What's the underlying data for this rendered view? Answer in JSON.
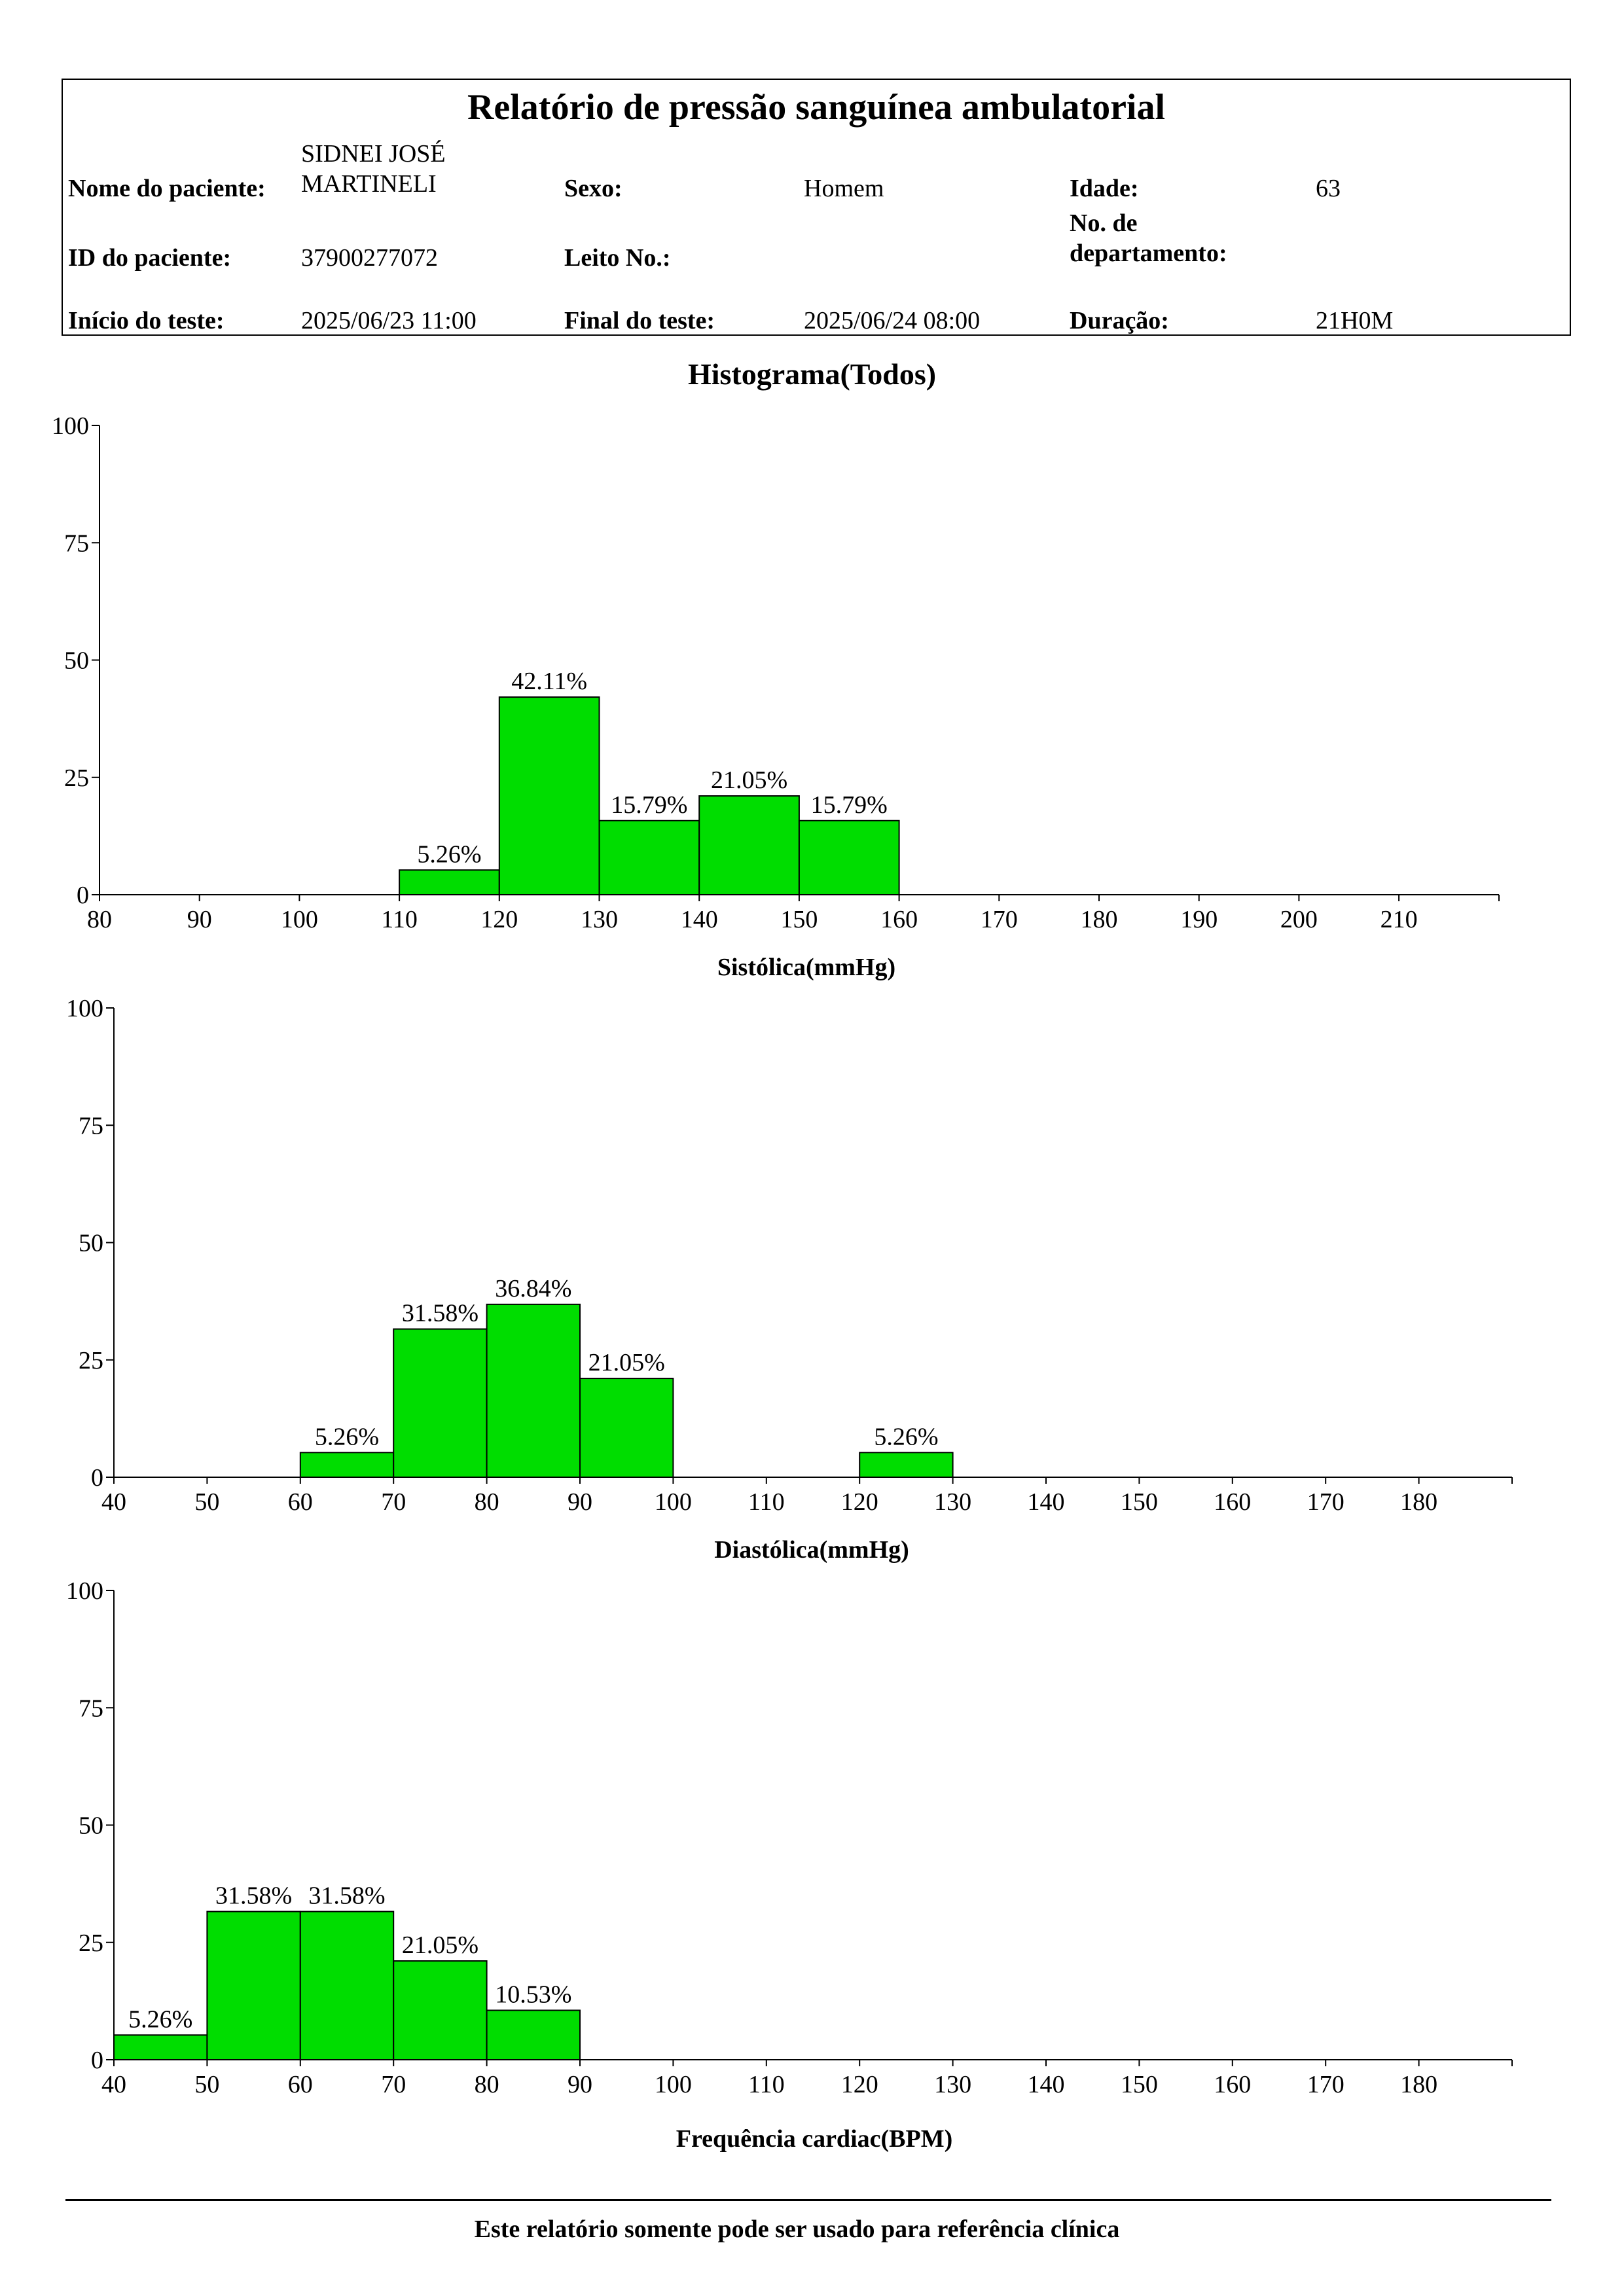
{
  "report": {
    "title": "Relatório de pressão sanguínea ambulatorial",
    "labels": {
      "patient_name": "Nome do paciente:",
      "sex": "Sexo:",
      "age": "Idade:",
      "patient_id": "ID do paciente:",
      "bed": "Leito No.:",
      "department_line1": "No. de",
      "department_line2": "departamento:",
      "test_start": "Início do teste:",
      "test_end": "Final do teste:",
      "duration": "Duração:"
    },
    "values": {
      "patient_name_line1": "SIDNEI JOSÉ",
      "patient_name_line2": "MARTINELI",
      "sex": "Homem",
      "age": "63",
      "patient_id": "37900277072",
      "bed": "",
      "department": "",
      "test_start": "2025/06/23 11:00",
      "test_end": "2025/06/24 08:00",
      "duration": "21H0M"
    }
  },
  "histogram_title": "Histograma(Todos)",
  "footer": "Este relatório somente pode ser usado para referência clínica",
  "colors": {
    "bar_fill": "#00dd00",
    "bar_stroke": "#000000",
    "axis": "#000000"
  },
  "chart_data": [
    {
      "type": "bar",
      "xlabel": "Sistólica(mmHg)",
      "ylabel": "",
      "xlim": [
        80,
        220
      ],
      "ylim": [
        0,
        100
      ],
      "x_ticks": [
        80,
        90,
        100,
        110,
        120,
        130,
        140,
        150,
        160,
        170,
        180,
        190,
        200,
        210
      ],
      "y_ticks": [
        0,
        25,
        50,
        75,
        100
      ],
      "bins": [
        {
          "from": 110,
          "to": 120,
          "value": 5.26,
          "label": "5.26%"
        },
        {
          "from": 120,
          "to": 130,
          "value": 42.11,
          "label": "42.11%"
        },
        {
          "from": 130,
          "to": 140,
          "value": 15.79,
          "label": "15.79%"
        },
        {
          "from": 140,
          "to": 150,
          "value": 21.05,
          "label": "21.05%"
        },
        {
          "from": 150,
          "to": 160,
          "value": 15.79,
          "label": "15.79%"
        }
      ]
    },
    {
      "type": "bar",
      "xlabel": "Diastólica(mmHg)",
      "ylabel": "",
      "xlim": [
        40,
        190
      ],
      "ylim": [
        0,
        100
      ],
      "x_ticks": [
        40,
        50,
        60,
        70,
        80,
        90,
        100,
        110,
        120,
        130,
        140,
        150,
        160,
        170,
        180
      ],
      "y_ticks": [
        0,
        25,
        50,
        75,
        100
      ],
      "bins": [
        {
          "from": 60,
          "to": 70,
          "value": 5.26,
          "label": "5.26%"
        },
        {
          "from": 70,
          "to": 80,
          "value": 31.58,
          "label": "31.58%"
        },
        {
          "from": 80,
          "to": 90,
          "value": 36.84,
          "label": "36.84%"
        },
        {
          "from": 90,
          "to": 100,
          "value": 21.05,
          "label": "21.05%"
        },
        {
          "from": 120,
          "to": 130,
          "value": 5.26,
          "label": "5.26%"
        }
      ]
    },
    {
      "type": "bar",
      "xlabel": "Frequência cardiac(BPM)",
      "ylabel": "",
      "xlim": [
        40,
        190
      ],
      "ylim": [
        0,
        100
      ],
      "x_ticks": [
        40,
        50,
        60,
        70,
        80,
        90,
        100,
        110,
        120,
        130,
        140,
        150,
        160,
        170,
        180
      ],
      "y_ticks": [
        0,
        25,
        50,
        75,
        100
      ],
      "bins": [
        {
          "from": 40,
          "to": 50,
          "value": 5.26,
          "label": "5.26%"
        },
        {
          "from": 50,
          "to": 60,
          "value": 31.58,
          "label": "31.58%"
        },
        {
          "from": 60,
          "to": 70,
          "value": 31.58,
          "label": "31.58%"
        },
        {
          "from": 70,
          "to": 80,
          "value": 21.05,
          "label": "21.05%"
        },
        {
          "from": 80,
          "to": 90,
          "value": 10.53,
          "label": "10.53%"
        }
      ]
    }
  ]
}
